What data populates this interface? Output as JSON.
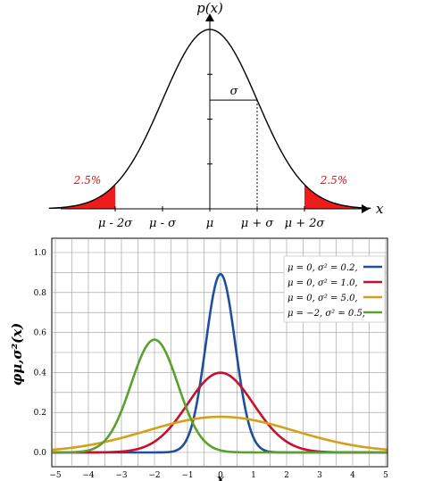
{
  "chart_data": [
    {
      "type": "line",
      "ylabel": "p(x)",
      "xlabel": "x",
      "mu": 0,
      "sigma": 1,
      "x_tick_labels": [
        "μ - 2σ",
        "μ - σ",
        "μ",
        "μ + σ",
        "μ + 2σ"
      ],
      "sigma_label": "σ",
      "tail_labels": {
        "left": "2.5%",
        "right": "2.5%"
      },
      "tail_color": "#ee1c1c",
      "tail_cutoff_sigma": 2,
      "xlim": [
        -3.4,
        3.4
      ]
    },
    {
      "type": "line",
      "ylabel": "φμ,σ²(x)",
      "xlabel": "x",
      "xlim": [
        -5,
        5
      ],
      "ylim": [
        0,
        1.0
      ],
      "x_ticks": [
        -5,
        -4,
        -3,
        -2,
        -1,
        0,
        1,
        2,
        3,
        4,
        5
      ],
      "y_ticks": [
        "0.0",
        "0.2",
        "0.4",
        "0.6",
        "0.8",
        "1.0"
      ],
      "grid": true,
      "legend_position": "top-right",
      "series": [
        {
          "name": "μ = 0,    σ² = 0.2,",
          "mu": 0,
          "variance": 0.2,
          "color": "#1f4e9c"
        },
        {
          "name": "μ = 0,    σ² = 1.0,",
          "mu": 0,
          "variance": 1.0,
          "color": "#c8102e"
        },
        {
          "name": "μ = 0,    σ² = 5.0,",
          "mu": 0,
          "variance": 5.0,
          "color": "#d4a017"
        },
        {
          "name": "μ = −2,  σ² = 0.5,",
          "mu": -2,
          "variance": 0.5,
          "color": "#5aa02c"
        }
      ]
    }
  ]
}
